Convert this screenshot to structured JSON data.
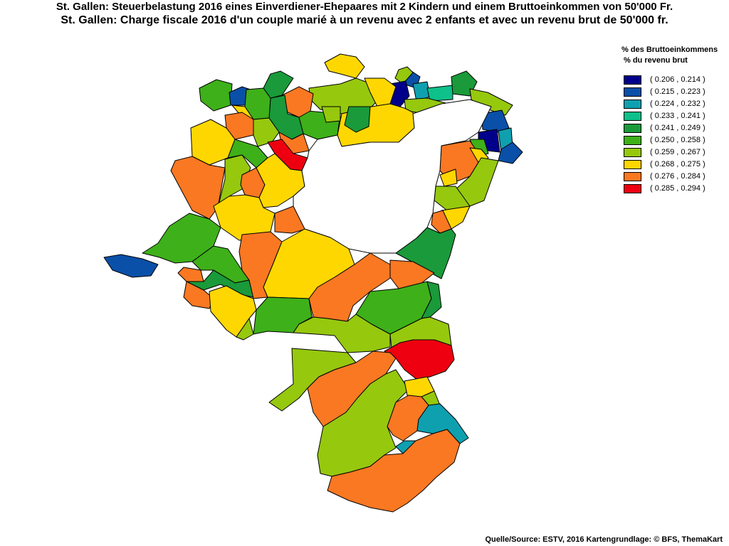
{
  "title_de": "St. Gallen: Steuerbelastung 2016 eines Einverdiener-Ehepaares mit 2 Kindern und einem Bruttoeinkommen von 50'000 Fr.",
  "title_fr": "St. Gallen: Charge fiscale 2016 d'un couple marié à un revenu avec 2 enfants et avec un revenu brut de 50'000 fr.",
  "legend": {
    "title_de": "% des Bruttoeinkommens",
    "title_fr": "% du revenu brut",
    "classes": [
      {
        "label": "( 0.206 , 0.214 )",
        "color": "#00008B"
      },
      {
        "label": "( 0.215 , 0.223 )",
        "color": "#0A50A8"
      },
      {
        "label": "( 0.224 , 0.232 )",
        "color": "#0FA0B0"
      },
      {
        "label": "( 0.233 , 0.241 )",
        "color": "#0EC08A"
      },
      {
        "label": "( 0.241 , 0.249 )",
        "color": "#1A9A3A"
      },
      {
        "label": "( 0.250 , 0.258 )",
        "color": "#3EB019"
      },
      {
        "label": "( 0.259 , 0.267 )",
        "color": "#96C80E"
      },
      {
        "label": "( 0.268 , 0.275 )",
        "color": "#FFD700"
      },
      {
        "label": "( 0.276 , 0.284 )",
        "color": "#FA7822"
      },
      {
        "label": "( 0.285 , 0.294 )",
        "color": "#EE0010"
      }
    ]
  },
  "source": "Quelle/Source: ESTV, 2016 Kartengrundlage: © BFS, ThemaKart"
}
